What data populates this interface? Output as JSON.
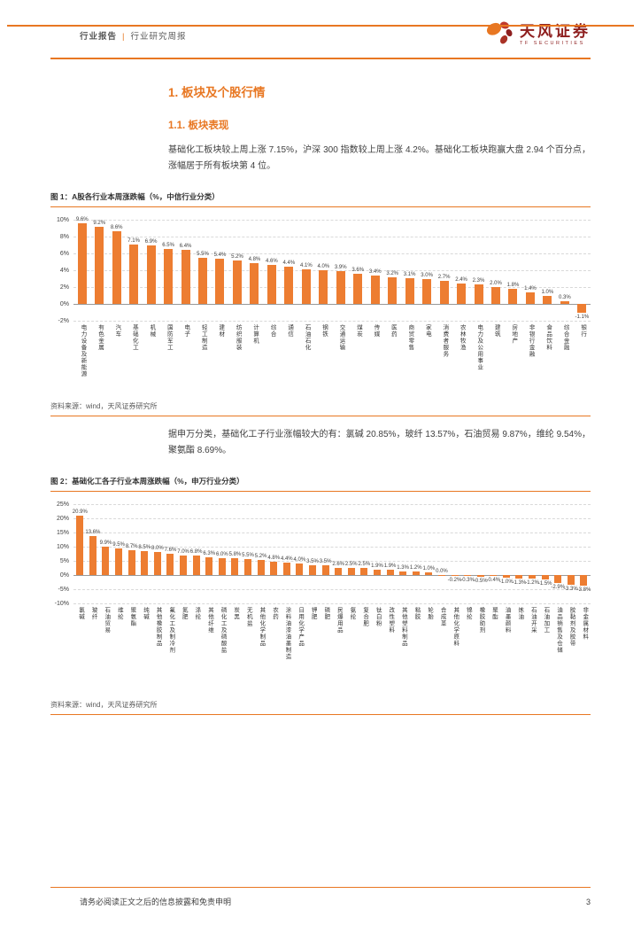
{
  "header": {
    "report_type": "行业报告",
    "divider": "|",
    "report_subtype": "行业研究周报",
    "brand_name": "天风证券",
    "brand_sub": "TF SECURITIES"
  },
  "section": {
    "h1": "1. 板块及个股行情",
    "h2": "1.1. 板块表现"
  },
  "paragraphs": {
    "p1": "基础化工板块较上周上涨 7.15%，沪深 300 指数较上周上涨 4.2%。基础化工板块跑赢大盘 2.94 个百分点，涨幅居于所有板块第 4 位。",
    "p2": "据申万分类，基础化工子行业涨幅较大的有：氯碱 20.85%，玻纤 13.57%，石油贸易 9.87%，维纶 9.54%，聚氨酯 8.69%。"
  },
  "figure1": {
    "caption": "图 1：A股各行业本周涨跌幅（%，中信行业分类）",
    "source": "资料来源：wind，天风证券研究所"
  },
  "figure2": {
    "caption": "图 2：基础化工各子行业本周涨跌幅（%，申万行业分类）",
    "source": "资料来源：wind，天风证券研究所"
  },
  "footer": {
    "disclaimer": "请务必阅读正文之后的信息披露和免责申明",
    "page_number": "3"
  },
  "colors": {
    "accent": "#E87722",
    "bar": "#ED7D31",
    "brand_red": "#8E1F1F"
  },
  "chart_data": [
    {
      "type": "bar",
      "title": "A股各行业本周涨跌幅（%，中信行业分类）",
      "categories": [
        "电力设备及新能源",
        "有色金属",
        "汽车",
        "基础化工",
        "机械",
        "国防军工",
        "电子",
        "轻工制造",
        "建材",
        "纺织服装",
        "计算机",
        "综合",
        "通信",
        "石油石化",
        "钢铁",
        "交通运输",
        "煤炭",
        "传媒",
        "医药",
        "商贸零售",
        "家电",
        "消费者服务",
        "农林牧渔",
        "电力及公用事业",
        "建筑",
        "房地产",
        "非银行金融",
        "食品饮料",
        "综合金融",
        "银行"
      ],
      "values": [
        9.6,
        9.2,
        8.6,
        7.1,
        6.9,
        6.5,
        6.4,
        5.5,
        5.4,
        5.2,
        4.8,
        4.6,
        4.4,
        4.1,
        4.0,
        3.9,
        3.6,
        3.4,
        3.2,
        3.1,
        3.0,
        2.7,
        2.4,
        2.3,
        2.0,
        1.8,
        1.4,
        1.0,
        0.3,
        -1.1
      ],
      "xlabel": "",
      "ylabel": "",
      "unit": "%",
      "ylim": [
        -2,
        10
      ],
      "ytick_step": 2,
      "grid": true,
      "legend": "none"
    },
    {
      "type": "bar",
      "title": "基础化工各子行业本周涨跌幅（%，申万行业分类）",
      "categories": [
        "氯碱",
        "玻纤",
        "石油贸易",
        "维纶",
        "聚氨酯",
        "纯碱",
        "其他橡胶制品",
        "氟化工及制冷剂",
        "氮肥",
        "涤纶",
        "其他纤维",
        "磷化工及磷酸盐",
        "炭黑",
        "无机盐",
        "其他化学制品",
        "农药",
        "涂料油漆油墨制造",
        "日用化学产品",
        "钾肥",
        "磷肥",
        "民爆用品",
        "氨纶",
        "复合肥",
        "钛白粉",
        "改性塑料",
        "其他塑料制品",
        "粘胶",
        "轮胎",
        "合成革",
        "其他化学原料",
        "锦纶",
        "橡胶助剂",
        "聚酯",
        "油墨颜料",
        "炼油",
        "石油开采",
        "石油加工",
        "油品销售及仓储",
        "胶黏剂及胶带",
        "非金属材料"
      ],
      "values": [
        20.9,
        13.6,
        9.9,
        9.5,
        8.7,
        8.5,
        8.0,
        7.6,
        7.0,
        6.8,
        6.3,
        6.0,
        5.8,
        5.5,
        5.2,
        4.8,
        4.4,
        4.0,
        3.5,
        3.5,
        2.6,
        2.5,
        2.5,
        1.9,
        1.9,
        1.3,
        1.2,
        1.0,
        0.0,
        -0.2,
        -0.3,
        -0.5,
        -0.4,
        -1.0,
        -1.3,
        -1.2,
        -1.5,
        -2.9,
        -3.3,
        -3.8
      ],
      "xlabel": "",
      "ylabel": "",
      "unit": "%",
      "ylim": [
        -10,
        25
      ],
      "ytick_step": 5,
      "grid": true,
      "legend": "none"
    }
  ]
}
